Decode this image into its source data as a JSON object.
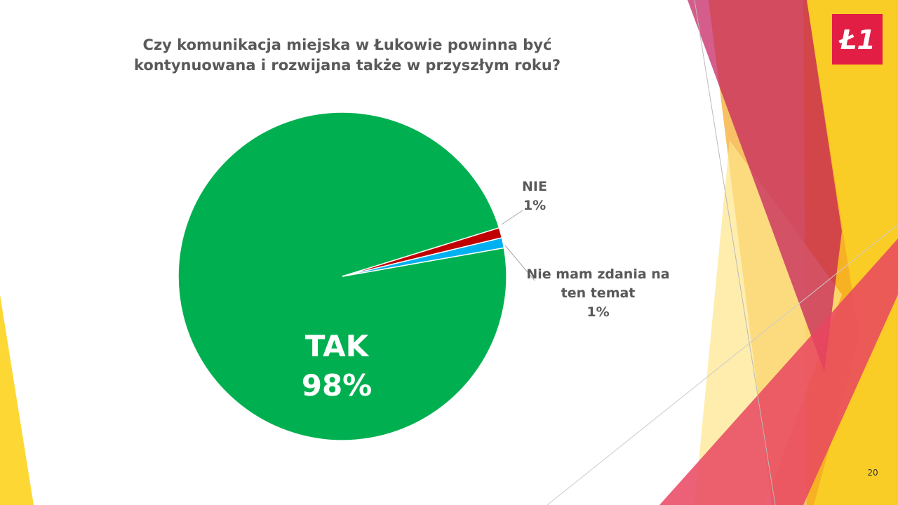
{
  "chart_data": {
    "type": "pie",
    "title": [
      "Czy komunikacja miejska w Łukowie powinna być",
      "kontynuowana i rozwijana także w przyszłym roku?"
    ],
    "categories": [
      "TAK",
      "NIE",
      "Nie mam zdania na ten temat"
    ],
    "values": [
      98,
      1,
      1
    ],
    "value_labels": [
      "98%",
      "1%",
      "1%"
    ],
    "colors": [
      "#00b050",
      "#c00000",
      "#00b0f0"
    ]
  },
  "slide": {
    "logo": "Ł1",
    "page_number": "20"
  }
}
